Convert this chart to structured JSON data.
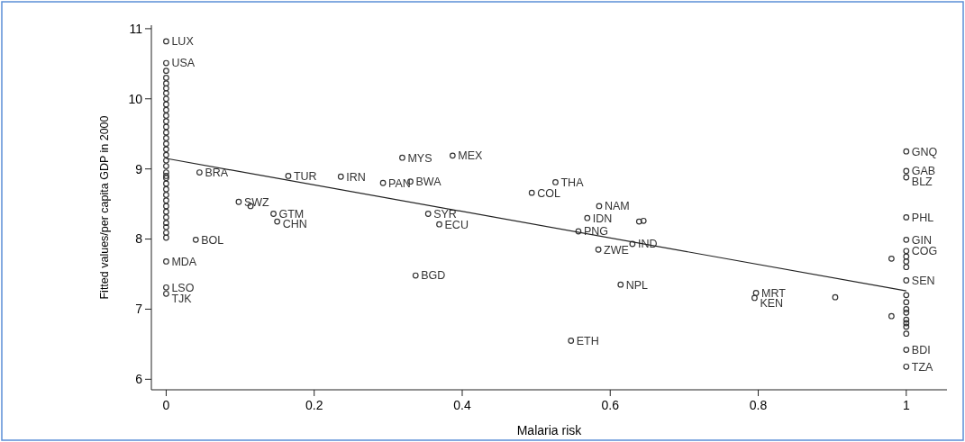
{
  "chart_data": {
    "type": "scatter",
    "xlabel": "Malaria risk",
    "ylabel": "Fitted values/per capita GDP in 2000",
    "xlim": [
      -0.02,
      1.055
    ],
    "ylim": [
      5.85,
      11.05
    ],
    "xticks": [
      0,
      0.2,
      0.4,
      0.6,
      0.8,
      1
    ],
    "yticks": [
      6,
      7,
      8,
      9,
      10,
      11
    ],
    "grid": false,
    "series": [
      {
        "type": "scatter",
        "marker": "circle",
        "color": "#333333",
        "x": [
          0,
          0,
          0,
          0,
          0,
          0,
          0,
          0,
          0,
          0,
          0,
          0,
          0,
          0,
          0,
          0,
          0,
          0,
          0,
          0,
          0,
          0,
          0,
          0,
          0,
          0,
          0,
          0,
          0,
          0,
          0,
          0,
          0,
          0,
          0,
          0.045,
          0.04,
          0,
          0,
          0.098,
          0.114,
          0.145,
          0.15,
          0.165,
          0.236,
          0.293,
          0.33,
          0.319,
          0.387,
          0.354,
          0.369,
          0.337,
          0.526,
          0.494,
          0.585,
          0.569,
          0.557,
          0.584,
          0.614,
          0.547,
          0.639,
          0.645,
          0.63,
          0.797,
          0.795,
          0.904,
          1,
          1,
          1,
          1,
          1,
          1,
          1,
          0.98,
          1,
          1,
          1,
          1,
          1,
          1,
          1,
          0.98,
          1,
          1,
          1,
          1,
          1,
          1
        ],
        "values": [
          10.82,
          10.51,
          10.4,
          10.3,
          10.22,
          10.15,
          10.08,
          10.0,
          9.92,
          9.84,
          9.76,
          9.68,
          9.6,
          9.52,
          9.44,
          9.36,
          9.28,
          9.2,
          9.12,
          9.04,
          8.95,
          8.87,
          8.79,
          8.71,
          8.63,
          8.55,
          8.47,
          8.39,
          8.31,
          8.17,
          8.09,
          7.68,
          7.31,
          7.22,
          8.9,
          8.95,
          7.99,
          8.23,
          8.02,
          8.53,
          8.47,
          8.36,
          8.25,
          8.9,
          8.89,
          8.8,
          8.82,
          9.16,
          9.19,
          8.36,
          8.21,
          7.48,
          8.81,
          8.66,
          8.47,
          8.3,
          8.11,
          7.85,
          7.35,
          6.55,
          8.25,
          8.26,
          7.93,
          7.23,
          7.16,
          7.17,
          9.25,
          8.97,
          8.88,
          8.31,
          7.99,
          7.83,
          7.75,
          7.72,
          7.68,
          7.6,
          7.41,
          7.2,
          7.1,
          7.0,
          6.95,
          6.9,
          6.85,
          6.8,
          6.75,
          6.65,
          6.42,
          6.18
        ],
        "value_labels": [
          "LUX",
          "USA",
          null,
          null,
          null,
          null,
          null,
          null,
          null,
          null,
          null,
          null,
          null,
          null,
          null,
          null,
          null,
          null,
          null,
          null,
          null,
          null,
          null,
          null,
          null,
          null,
          null,
          null,
          null,
          null,
          null,
          "MDA",
          "LSO",
          "TJK",
          null,
          "BRA",
          "BOL",
          null,
          null,
          "SWZ",
          null,
          "GTM",
          "CHN",
          "TUR",
          "IRN",
          "PAN",
          "BWA",
          "MYS",
          "MEX",
          "SYR",
          "ECU",
          "BGD",
          "THA",
          "COL",
          "NAM",
          "IDN",
          "PNG",
          "ZWE",
          "NPL",
          "ETH",
          null,
          null,
          "IND",
          "MRT",
          "KEN",
          null,
          "GNQ",
          "GAB",
          "BLZ",
          "PHL",
          "GIN",
          "COG",
          null,
          null,
          null,
          null,
          "SEN",
          null,
          null,
          null,
          null,
          null,
          null,
          null,
          null,
          null,
          "BDI",
          "TZA"
        ]
      },
      {
        "type": "line",
        "color": "#222222",
        "line_style": "solid",
        "marker": "none",
        "x": [
          0,
          1
        ],
        "values": [
          9.15,
          7.26
        ]
      }
    ]
  }
}
